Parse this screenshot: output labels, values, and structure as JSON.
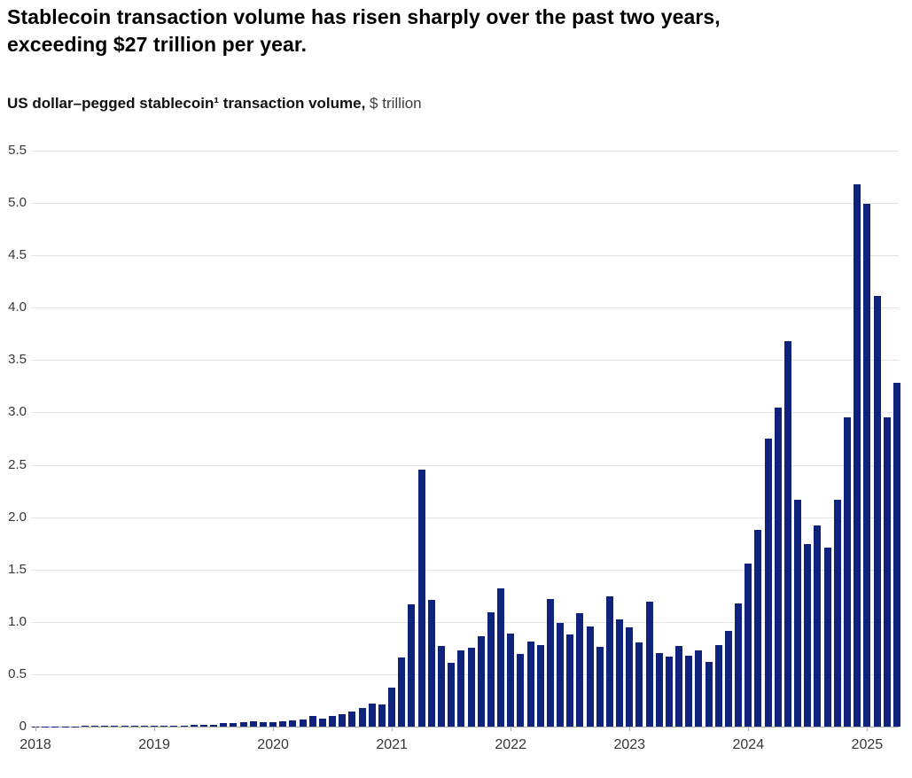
{
  "title": {
    "line1": "Stablecoin transaction volume has risen sharply over the past two years,",
    "line2": "exceeding $27 trillion per year."
  },
  "subtitle": {
    "bold": "US dollar–pegged stablecoin¹ transaction volume,",
    "unit": "$ trillion"
  },
  "chart_data": {
    "type": "bar",
    "title": "US dollar–pegged stablecoin¹ transaction volume, $ trillion",
    "xlabel": "",
    "ylabel": "$ trillion",
    "ylim": [
      0,
      5.5
    ],
    "y_tick_labels": [
      "0",
      "0.5",
      "1.0",
      "1.5",
      "2.0",
      "2.5",
      "3.0",
      "3.5",
      "4.0",
      "4.5",
      "5.0",
      "5.5"
    ],
    "x_tick_labels": [
      "2018",
      "2019",
      "2020",
      "2021",
      "2022",
      "2023",
      "2024",
      "2025"
    ],
    "grid": "horizontal",
    "legend": "none",
    "bar_color": "#10237c",
    "frequency": "monthly",
    "start": "2018-01",
    "end": "2025-04",
    "series": [
      {
        "year": 2018,
        "values": [
          0.002,
          0.003,
          0.003,
          0.004,
          0.004,
          0.005,
          0.005,
          0.006,
          0.007,
          0.007,
          0.008,
          0.009
        ]
      },
      {
        "year": 2019,
        "values": [
          0.01,
          0.01,
          0.01,
          0.012,
          0.015,
          0.015,
          0.02,
          0.035,
          0.03,
          0.04,
          0.05,
          0.04
        ]
      },
      {
        "year": 2020,
        "values": [
          0.04,
          0.05,
          0.06,
          0.07,
          0.1,
          0.08,
          0.1,
          0.12,
          0.14,
          0.18,
          0.22,
          0.21
        ]
      },
      {
        "year": 2021,
        "values": [
          0.37,
          0.66,
          1.17,
          2.45,
          1.21,
          0.77,
          0.61,
          0.73,
          0.75,
          0.86,
          1.09,
          1.32
        ]
      },
      {
        "year": 2022,
        "values": [
          0.89,
          0.69,
          0.81,
          0.78,
          1.22,
          0.99,
          0.88,
          1.08,
          0.96,
          0.76,
          1.24,
          1.02
        ]
      },
      {
        "year": 2023,
        "values": [
          0.95,
          0.8,
          1.19,
          0.7,
          0.67,
          0.77,
          0.68,
          0.73,
          0.62,
          0.78,
          0.91,
          1.18
        ]
      },
      {
        "year": 2024,
        "values": [
          1.56,
          1.88,
          2.75,
          3.05,
          3.68,
          2.17,
          1.74,
          1.92,
          1.71,
          2.17,
          2.95,
          5.18
        ]
      },
      {
        "year": 2025,
        "values": [
          4.99,
          4.11,
          2.95,
          3.28
        ]
      }
    ]
  }
}
